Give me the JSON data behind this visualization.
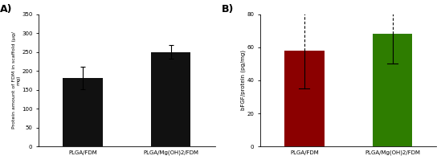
{
  "panel_A": {
    "categories": [
      "PLGA/FDM",
      "PLGA/Mg(OH)2/FDM"
    ],
    "values": [
      182,
      250
    ],
    "errors": [
      30,
      18
    ],
    "bar_color": "#111111",
    "ylabel": "Protein amount of FDM in scaffold (μg/\nmg)",
    "ylim": [
      0,
      350
    ],
    "yticks": [
      0,
      50,
      100,
      150,
      200,
      250,
      300,
      350
    ],
    "label": "A)"
  },
  "panel_B": {
    "categories": [
      "PLGA/FDM",
      "PLGA/Mg(OH)2/FDM"
    ],
    "values": [
      58,
      68
    ],
    "errors_lower": [
      23,
      18
    ],
    "errors_upper": [
      27,
      25
    ],
    "bar_colors": [
      "#8B0000",
      "#2E7D00"
    ],
    "ylabel": "bFGF/protein (pg/mg)",
    "ylim": [
      0,
      80
    ],
    "yticks": [
      0,
      20,
      40,
      60,
      80
    ],
    "label": "B)"
  }
}
